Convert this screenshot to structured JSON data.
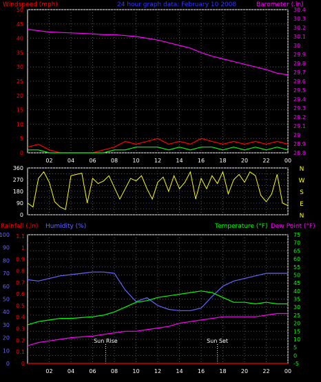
{
  "chart_data": [
    {
      "type": "line",
      "panel": "wind-barometer",
      "title": "24 hour graph data:  February 10 2008",
      "left_label": "Windspeed (mph)",
      "right_label": "Barometer (.in)",
      "x_ticks": [
        "02",
        "04",
        "06",
        "08",
        "10",
        "12",
        "14",
        "16",
        "18",
        "20",
        "22",
        "00"
      ],
      "y_left": {
        "min": 0,
        "max": 50,
        "ticks": [
          0,
          5,
          10,
          15,
          20,
          25,
          30,
          35,
          40,
          45,
          50
        ]
      },
      "y_right": {
        "min": 28.8,
        "max": 30.4,
        "ticks": [
          "28.8",
          "28.9",
          "29",
          "29.1",
          "29.2",
          "29.3",
          "29.4",
          "29.5",
          "29.6",
          "29.7",
          "29.8",
          "29.9",
          "30",
          "30.1",
          "30.2",
          "30.3",
          "30.4"
        ]
      },
      "series": [
        {
          "name": "Barometer (.in)",
          "color": "#ff00ff",
          "axis": "right",
          "x": [
            0,
            2,
            4,
            6,
            7,
            8,
            9,
            10,
            11,
            12,
            13,
            14,
            15,
            16,
            17,
            18,
            19,
            20,
            21,
            22,
            23,
            24
          ],
          "values": [
            30.18,
            30.15,
            30.14,
            30.13,
            30.12,
            30.12,
            30.11,
            30.1,
            30.08,
            30.06,
            30.03,
            30.0,
            29.97,
            29.92,
            29.88,
            29.85,
            29.82,
            29.79,
            29.76,
            29.73,
            29.69,
            29.67
          ]
        },
        {
          "name": "Wind Gust",
          "color": "#ff0000",
          "axis": "left",
          "x": [
            0,
            1,
            2,
            3,
            4,
            5,
            6,
            7,
            8,
            9,
            10,
            11,
            12,
            13,
            14,
            15,
            16,
            17,
            18,
            19,
            20,
            21,
            22,
            23,
            24
          ],
          "values": [
            2,
            3,
            1,
            0,
            0,
            0,
            0,
            1,
            2,
            4,
            3,
            4,
            5,
            3,
            4,
            3,
            5,
            4,
            3,
            4,
            3,
            4,
            3,
            4,
            3
          ]
        },
        {
          "name": "Windspeed",
          "color": "#00ff00",
          "axis": "left",
          "x": [
            0,
            1,
            2,
            3,
            4,
            5,
            6,
            7,
            8,
            9,
            10,
            11,
            12,
            13,
            14,
            15,
            16,
            17,
            18,
            19,
            20,
            21,
            22,
            23,
            24
          ],
          "values": [
            1,
            1,
            0,
            0,
            0,
            0,
            0,
            0,
            1,
            1,
            2,
            2,
            2,
            1,
            2,
            1,
            2,
            2,
            1,
            2,
            1,
            2,
            1,
            2,
            1
          ]
        }
      ]
    },
    {
      "type": "line",
      "panel": "wind-direction",
      "x_ticks": [
        "02",
        "04",
        "06",
        "08",
        "10",
        "12",
        "14",
        "16",
        "18",
        "20",
        "22",
        "00"
      ],
      "y_left": {
        "min": 0,
        "max": 360,
        "ticks": [
          0,
          45,
          90,
          135,
          180,
          225,
          270,
          315,
          360
        ]
      },
      "compass": [
        "N",
        "W",
        "S",
        "E",
        "N"
      ],
      "series": [
        {
          "name": "Wind Direction",
          "color": "#ffff00",
          "x": [
            0,
            0.5,
            1,
            1.5,
            2,
            2.5,
            3,
            3.5,
            4,
            4.5,
            5,
            5.5,
            6,
            6.5,
            7,
            7.5,
            8,
            8.5,
            9,
            9.5,
            10,
            10.5,
            11,
            11.5,
            12,
            12.5,
            13,
            13.5,
            14,
            14.5,
            15,
            15.5,
            16,
            16.5,
            17,
            17.5,
            18,
            18.5,
            19,
            19.5,
            20,
            20.5,
            21,
            21.5,
            22,
            22.5,
            23,
            23.5,
            24
          ],
          "values": [
            90,
            60,
            280,
            330,
            250,
            100,
            60,
            40,
            300,
            310,
            320,
            90,
            280,
            240,
            260,
            300,
            210,
            120,
            200,
            280,
            260,
            300,
            200,
            120,
            250,
            290,
            180,
            300,
            200,
            250,
            330,
            120,
            280,
            200,
            300,
            240,
            330,
            160,
            270,
            310,
            250,
            330,
            300,
            150,
            100,
            160,
            310,
            90,
            70
          ]
        }
      ]
    },
    {
      "type": "line",
      "panel": "rain-humidity-temperature",
      "left_label_rain": "Rainfall (.in)",
      "left_label_humidity": "Humidity (%)",
      "right_label_temp": "Temperature (°F)",
      "right_label_dew": "Dew Point (°F)",
      "x_ticks": [
        "02",
        "04",
        "06",
        "08",
        "10",
        "12",
        "14",
        "16",
        "18",
        "20",
        "22",
        "00"
      ],
      "y_humidity": {
        "min": 0,
        "max": 100,
        "ticks": [
          0,
          10,
          20,
          30,
          40,
          50,
          60,
          70,
          80,
          90,
          100
        ]
      },
      "y_rain": {
        "min": 0,
        "max": 1.0,
        "ticks": [
          "0",
          "0.1",
          "0.2",
          "0.3",
          "0.4",
          "0.5",
          "0.6",
          "0.7",
          "0.8",
          "0.9",
          "1",
          "1.1"
        ]
      },
      "y_temp": {
        "min": -5,
        "max": 75,
        "ticks": [
          -5,
          0,
          5,
          10,
          15,
          20,
          25,
          30,
          35,
          40,
          45,
          50,
          55,
          60,
          65,
          70,
          75
        ]
      },
      "annotations": [
        {
          "label": "Sun Rise",
          "x": 7.2
        },
        {
          "label": "Sun Set",
          "x": 17.5
        }
      ],
      "series": [
        {
          "name": "Humidity (%)",
          "color": "#6666ff",
          "axis": "humidity",
          "x": [
            0,
            1,
            2,
            3,
            4,
            5,
            6,
            7,
            8,
            9,
            10,
            11,
            12,
            13,
            14,
            15,
            16,
            17,
            18,
            19,
            20,
            21,
            22,
            23,
            24
          ],
          "values": [
            65,
            64,
            66,
            68,
            69,
            70,
            71,
            71,
            70,
            57,
            48,
            51,
            45,
            42,
            41,
            41,
            43,
            52,
            60,
            64,
            66,
            68,
            70,
            70,
            70
          ]
        },
        {
          "name": "Temperature (°F)",
          "color": "#00ff00",
          "axis": "temp",
          "x": [
            0,
            1,
            2,
            3,
            4,
            5,
            6,
            7,
            8,
            9,
            10,
            11,
            12,
            13,
            14,
            15,
            16,
            17,
            18,
            19,
            20,
            21,
            22,
            23,
            24
          ],
          "values": [
            19,
            21,
            22,
            23,
            23,
            23.5,
            24,
            25,
            27,
            30,
            33,
            34,
            36,
            37,
            38,
            39,
            40,
            39,
            36,
            33,
            33,
            32,
            33,
            32,
            32
          ]
        },
        {
          "name": "Dew Point (°F)",
          "color": "#ff00ff",
          "axis": "temp",
          "x": [
            0,
            1,
            2,
            3,
            4,
            5,
            6,
            7,
            8,
            9,
            10,
            11,
            12,
            13,
            14,
            15,
            16,
            17,
            18,
            19,
            20,
            21,
            22,
            23,
            24
          ],
          "values": [
            6,
            8,
            9,
            10,
            11,
            11.5,
            12,
            13,
            14,
            15,
            15,
            16,
            17,
            18,
            20,
            21,
            22,
            23,
            24,
            24,
            24,
            24,
            25,
            26,
            26
          ]
        },
        {
          "name": "Rainfall (.in)",
          "color": "#ff0000",
          "axis": "rain",
          "x": [
            0,
            24
          ],
          "values": [
            0,
            0
          ]
        }
      ]
    }
  ]
}
